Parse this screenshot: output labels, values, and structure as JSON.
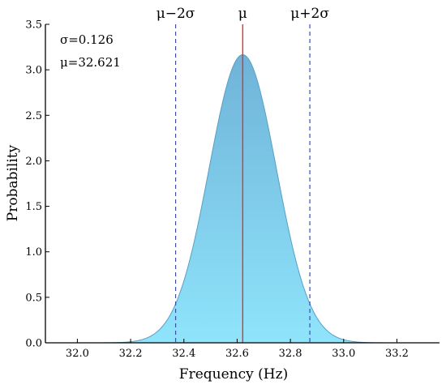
{
  "chart_data": {
    "type": "area",
    "title": "",
    "xlabel": "Frequency (Hz)",
    "ylabel": "Probability",
    "xlim": [
      31.88,
      33.36
    ],
    "ylim": [
      0,
      3.5
    ],
    "xticks": [
      "32.0",
      "32.2",
      "32.4",
      "32.6",
      "32.8",
      "33.0",
      "33.2"
    ],
    "yticks": [
      "0.0",
      "0.5",
      "1.0",
      "1.5",
      "2.0",
      "2.5",
      "3.0",
      "3.5"
    ],
    "distribution": {
      "kind": "normal",
      "mean": 32.621,
      "std": 0.126
    },
    "annotations": {
      "sigma_text": "σ=0.126",
      "mu_text": "μ=32.621"
    },
    "markers": [
      {
        "label": "μ−2σ",
        "x": 32.369,
        "style": "dashed",
        "color": "#3a4fa8"
      },
      {
        "label": "μ",
        "x": 32.621,
        "style": "solid",
        "color": "#e8302a"
      },
      {
        "label": "μ+2σ",
        "x": 32.873,
        "style": "dashed",
        "color": "#3a4fa8"
      }
    ],
    "fill_color_top": "#6fb3d8",
    "fill_color_bottom": "#8fe4fb",
    "edge_color": "#5a9fc4",
    "grid": false
  }
}
